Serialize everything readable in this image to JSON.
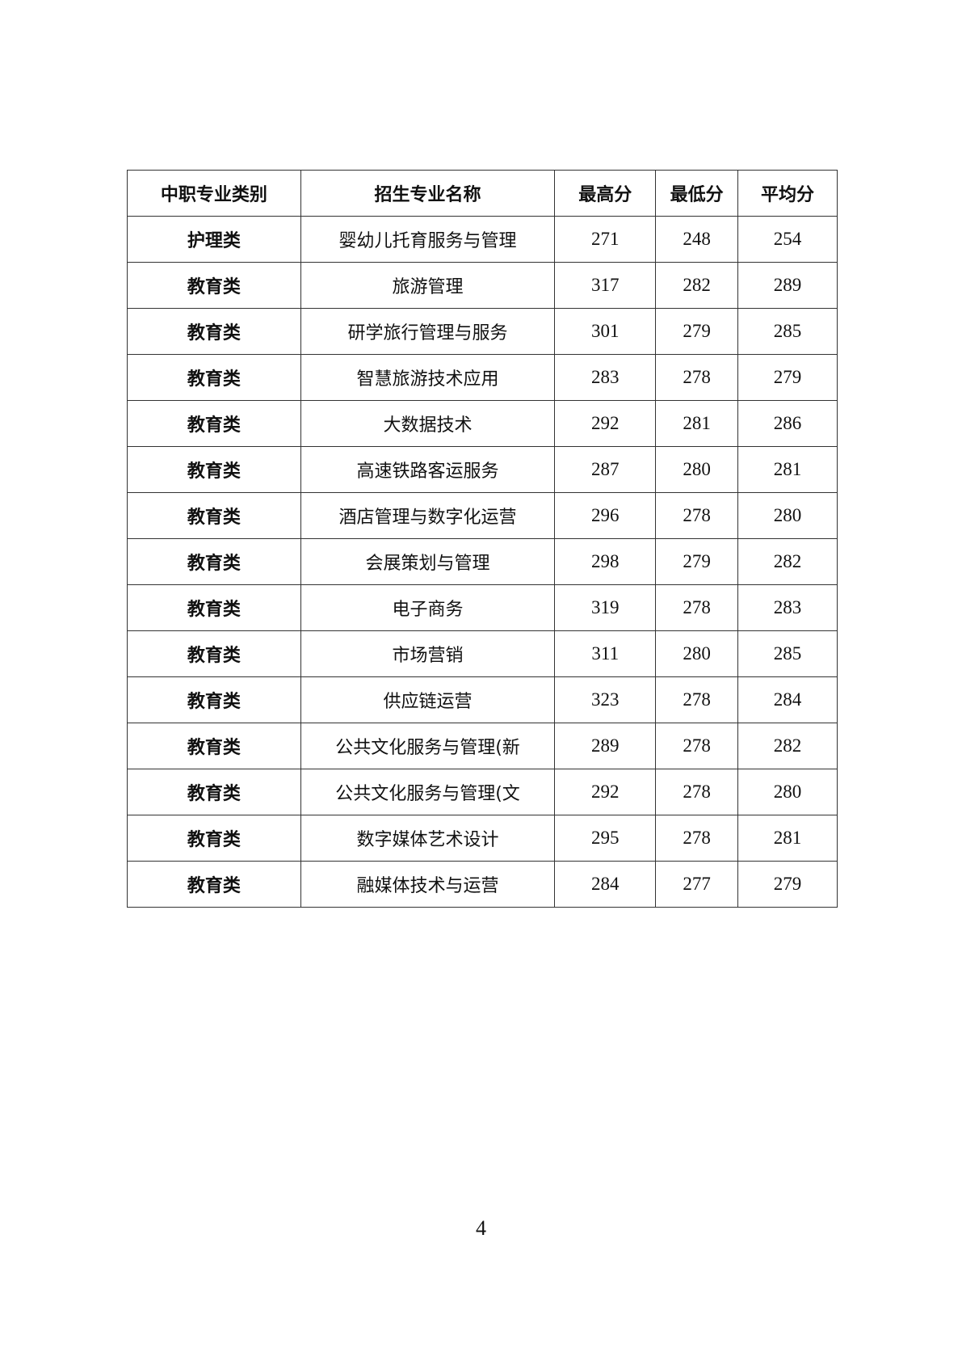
{
  "table": {
    "headers": [
      "中职专业类别",
      "招生专业名称",
      "最高分",
      "最低分",
      "平均分"
    ],
    "rows": [
      [
        "护理类",
        "婴幼儿托育服务与管理",
        "271",
        "248",
        "254"
      ],
      [
        "教育类",
        "旅游管理",
        "317",
        "282",
        "289"
      ],
      [
        "教育类",
        "研学旅行管理与服务",
        "301",
        "279",
        "285"
      ],
      [
        "教育类",
        "智慧旅游技术应用",
        "283",
        "278",
        "279"
      ],
      [
        "教育类",
        "大数据技术",
        "292",
        "281",
        "286"
      ],
      [
        "教育类",
        "高速铁路客运服务",
        "287",
        "280",
        "281"
      ],
      [
        "教育类",
        "酒店管理与数字化运营",
        "296",
        "278",
        "280"
      ],
      [
        "教育类",
        "会展策划与管理",
        "298",
        "279",
        "282"
      ],
      [
        "教育类",
        "电子商务",
        "319",
        "278",
        "283"
      ],
      [
        "教育类",
        "市场营销",
        "311",
        "280",
        "285"
      ],
      [
        "教育类",
        "供应链运营",
        "323",
        "278",
        "284"
      ],
      [
        "教育类",
        "公共文化服务与管理(新",
        "289",
        "278",
        "282"
      ],
      [
        "教育类",
        "公共文化服务与管理(文",
        "292",
        "278",
        "280"
      ],
      [
        "教育类",
        "数字媒体艺术设计",
        "295",
        "278",
        "281"
      ],
      [
        "教育类",
        "融媒体技术与运营",
        "284",
        "277",
        "279"
      ]
    ]
  },
  "page_number": "4"
}
